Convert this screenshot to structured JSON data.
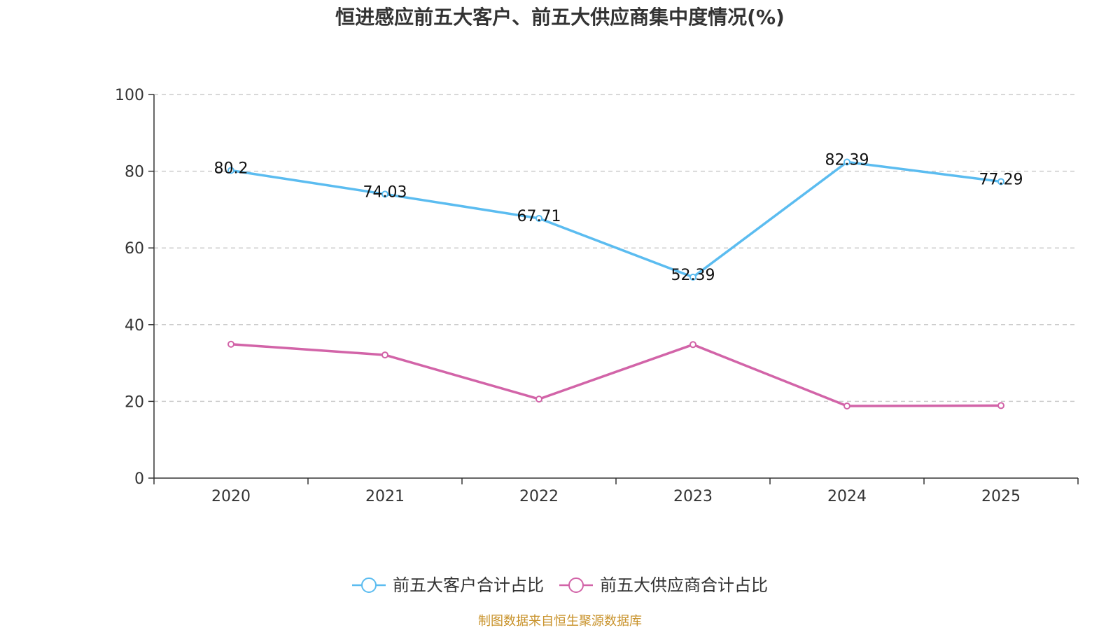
{
  "chart_data": {
    "type": "line",
    "title": "恒进感应前五大客户、前五大供应商集中度情况(%)",
    "categories": [
      "2020",
      "2021",
      "2022",
      "2023",
      "2024",
      "2025"
    ],
    "ylim": [
      0,
      100
    ],
    "yticks": [
      0,
      20,
      40,
      60,
      80,
      100
    ],
    "grid": true,
    "series": [
      {
        "name": "前五大客户合计占比",
        "color": "#5bbcf0",
        "values": [
          80.2,
          74.03,
          67.71,
          52.39,
          82.39,
          77.29
        ],
        "labels": [
          "80.2",
          "74.03",
          "67.71",
          "52.39",
          "82.39",
          "77.29"
        ]
      },
      {
        "name": "前五大供应商合计占比",
        "color": "#d264a8",
        "values": [
          34.9,
          32.1,
          20.6,
          34.8,
          18.8,
          18.9
        ],
        "labels": []
      }
    ],
    "legend_position": "bottom"
  },
  "source_note": "制图数据来自恒生聚源数据库",
  "colors": {
    "axis": "#333333",
    "grid": "#cccccc",
    "source": "#c8922a"
  }
}
